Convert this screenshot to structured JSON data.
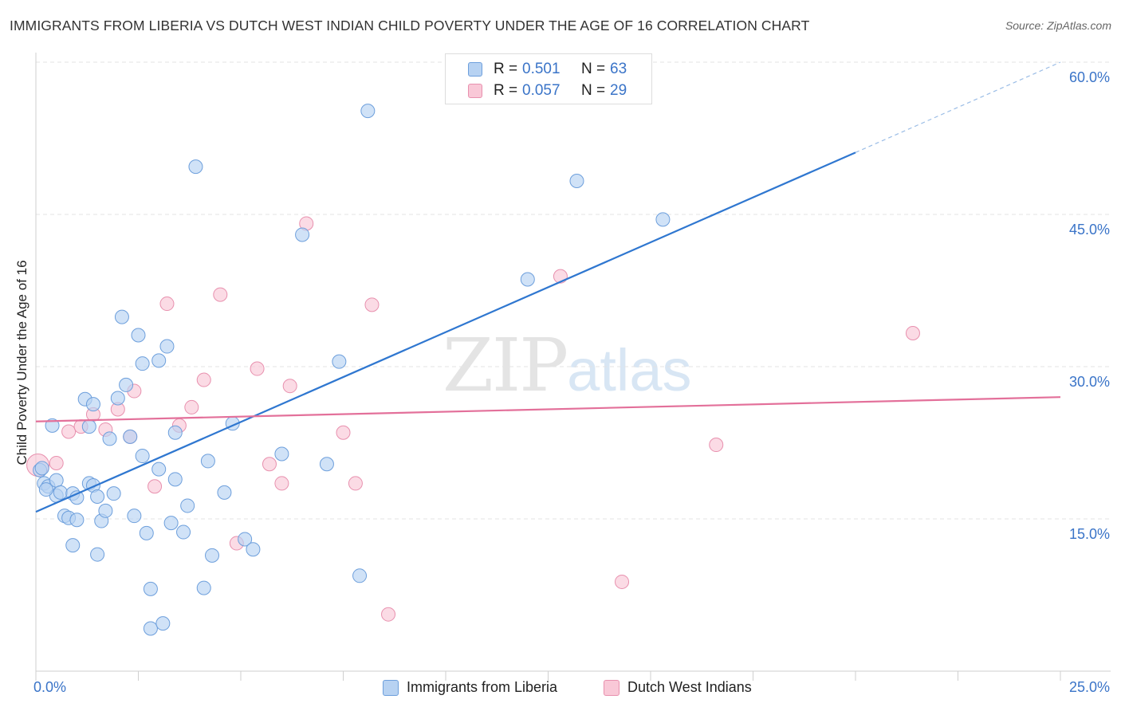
{
  "title": "IMMIGRANTS FROM LIBERIA VS DUTCH WEST INDIAN CHILD POVERTY UNDER THE AGE OF 16 CORRELATION CHART",
  "source": "Source: ZipAtlas.com",
  "watermark": {
    "zip": "ZIP",
    "atlas": "atlas"
  },
  "legend": {
    "rows": [
      {
        "r_label": "R =",
        "r_value": "0.501",
        "n_label": "N =",
        "n_value": "63"
      },
      {
        "r_label": "R =",
        "r_value": "0.057",
        "n_label": "N =",
        "n_value": "29"
      }
    ]
  },
  "bottom_legend": {
    "series1": "Immigrants from Liberia",
    "series2": "Dutch West Indians"
  },
  "axis_labels": {
    "y_title": "Child Poverty Under the Age of 16",
    "x_min": "0.0%",
    "x_max": "25.0%"
  },
  "y_tick_labels": [
    "15.0%",
    "30.0%",
    "45.0%",
    "60.0%"
  ],
  "colors": {
    "series1_fill": "#b7d2f2",
    "series1_stroke": "#6d9fdc",
    "series1_line": "#2f77d0",
    "series2_fill": "#f9c8d7",
    "series2_stroke": "#e890ae",
    "series2_line": "#e3709a",
    "grid": "#e3e3e3",
    "axis_text": "#3a74c8"
  },
  "chart_data": {
    "type": "scatter",
    "title": "IMMIGRANTS FROM LIBERIA VS DUTCH WEST INDIAN CHILD POVERTY UNDER THE AGE OF 16 CORRELATION CHART",
    "xlabel": "",
    "ylabel": "Child Poverty Under the Age of 16",
    "xlim": [
      0,
      25
    ],
    "ylim": [
      0,
      60
    ],
    "y_ticks": [
      15,
      30,
      45,
      60
    ],
    "grid": true,
    "legend_position": "top-center",
    "series": [
      {
        "name": "Immigrants from Liberia",
        "r": 0.501,
        "n": 63,
        "trend": {
          "x": [
            0,
            20
          ],
          "y": [
            15.7,
            51.1
          ],
          "dashed_to": {
            "x": 25,
            "y": 60.0
          }
        },
        "points": [
          [
            0.1,
            19.8
          ],
          [
            0.2,
            18.5
          ],
          [
            0.3,
            18.2
          ],
          [
            0.5,
            17.3
          ],
          [
            0.5,
            18.8
          ],
          [
            0.6,
            17.6
          ],
          [
            0.7,
            15.3
          ],
          [
            0.8,
            15.1
          ],
          [
            0.9,
            17.5
          ],
          [
            1.0,
            17.1
          ],
          [
            1.0,
            14.9
          ],
          [
            0.9,
            12.4
          ],
          [
            0.4,
            24.2
          ],
          [
            1.2,
            26.8
          ],
          [
            1.3,
            24.1
          ],
          [
            1.4,
            26.3
          ],
          [
            1.3,
            18.5
          ],
          [
            1.4,
            18.3
          ],
          [
            1.5,
            17.2
          ],
          [
            1.6,
            14.8
          ],
          [
            1.5,
            11.5
          ],
          [
            1.7,
            15.8
          ],
          [
            1.9,
            17.5
          ],
          [
            1.8,
            22.9
          ],
          [
            2.0,
            26.9
          ],
          [
            2.1,
            34.9
          ],
          [
            2.2,
            28.2
          ],
          [
            2.3,
            23.1
          ],
          [
            2.4,
            15.3
          ],
          [
            2.5,
            33.1
          ],
          [
            2.6,
            30.3
          ],
          [
            2.6,
            21.2
          ],
          [
            2.7,
            13.6
          ],
          [
            2.8,
            8.1
          ],
          [
            2.8,
            4.2
          ],
          [
            3.0,
            19.9
          ],
          [
            3.0,
            30.6
          ],
          [
            3.1,
            4.7
          ],
          [
            3.2,
            32.0
          ],
          [
            3.3,
            14.6
          ],
          [
            3.4,
            23.5
          ],
          [
            3.4,
            18.9
          ],
          [
            3.6,
            13.7
          ],
          [
            3.7,
            16.3
          ],
          [
            3.9,
            49.7
          ],
          [
            4.1,
            8.2
          ],
          [
            4.2,
            20.7
          ],
          [
            4.3,
            11.4
          ],
          [
            4.6,
            17.6
          ],
          [
            4.8,
            24.4
          ],
          [
            5.1,
            13.0
          ],
          [
            5.3,
            12.0
          ],
          [
            6.0,
            21.4
          ],
          [
            6.5,
            43.0
          ],
          [
            7.1,
            20.4
          ],
          [
            7.4,
            30.5
          ],
          [
            7.9,
            9.4
          ],
          [
            8.1,
            55.2
          ],
          [
            12.0,
            38.6
          ],
          [
            13.2,
            48.3
          ],
          [
            15.3,
            44.5
          ],
          [
            0.15,
            20.0
          ],
          [
            0.25,
            17.9
          ]
        ]
      },
      {
        "name": "Dutch West Indians",
        "r": 0.057,
        "n": 29,
        "trend": {
          "x": [
            0,
            25
          ],
          "y": [
            24.6,
            27.0
          ]
        },
        "points": [
          [
            0.05,
            20.3
          ],
          [
            0.5,
            20.5
          ],
          [
            0.8,
            23.6
          ],
          [
            1.1,
            24.1
          ],
          [
            1.4,
            25.3
          ],
          [
            1.7,
            23.8
          ],
          [
            2.0,
            25.8
          ],
          [
            2.3,
            23.1
          ],
          [
            2.4,
            27.6
          ],
          [
            2.9,
            18.2
          ],
          [
            3.2,
            36.2
          ],
          [
            3.5,
            24.2
          ],
          [
            3.8,
            26.0
          ],
          [
            4.1,
            28.7
          ],
          [
            4.5,
            37.1
          ],
          [
            4.9,
            12.6
          ],
          [
            5.4,
            29.8
          ],
          [
            5.7,
            20.4
          ],
          [
            6.0,
            18.5
          ],
          [
            6.2,
            28.1
          ],
          [
            6.6,
            44.1
          ],
          [
            7.5,
            23.5
          ],
          [
            7.8,
            18.5
          ],
          [
            8.2,
            36.1
          ],
          [
            8.6,
            5.6
          ],
          [
            12.8,
            38.9
          ],
          [
            14.3,
            8.8
          ],
          [
            16.6,
            22.3
          ],
          [
            21.4,
            33.3
          ]
        ]
      }
    ]
  }
}
